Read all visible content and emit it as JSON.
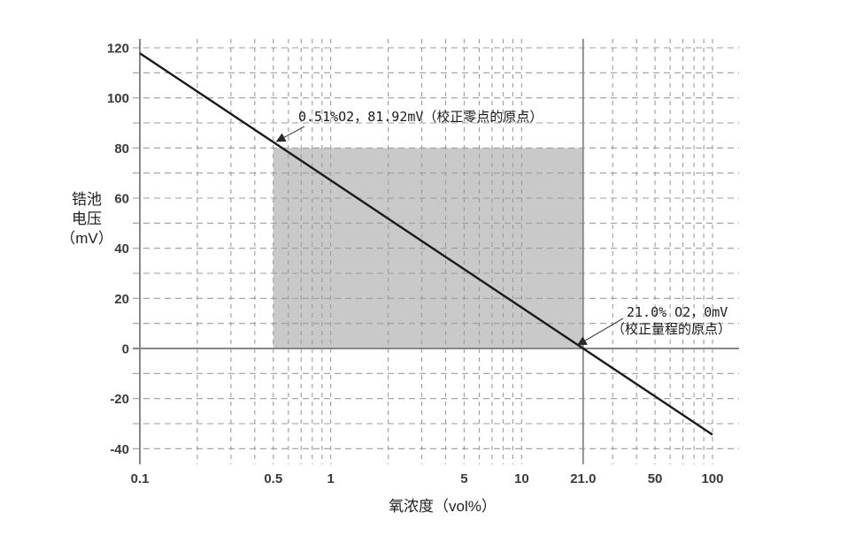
{
  "chart_data": {
    "type": "line",
    "title": "",
    "xlabel": "氧浓度（vol%）",
    "ylabel_lines": [
      "锆池",
      "电压",
      "（mV）"
    ],
    "x_scale": "log",
    "xlim": [
      0.1,
      100
    ],
    "ylim": [
      -40,
      120
    ],
    "grid": true,
    "legend_position": "none",
    "x_ticks": [
      {
        "v": 0.1,
        "label": "0.1"
      },
      {
        "v": 0.5,
        "label": "0.5"
      },
      {
        "v": 1,
        "label": "1"
      },
      {
        "v": 5,
        "label": "5"
      },
      {
        "v": 10,
        "label": "10"
      },
      {
        "v": 21,
        "label": "21.0"
      },
      {
        "v": 50,
        "label": "50"
      },
      {
        "v": 100,
        "label": "100"
      }
    ],
    "y_ticks": [
      {
        "v": 120,
        "label": "120"
      },
      {
        "v": 100,
        "label": "100"
      },
      {
        "v": 80,
        "label": "80"
      },
      {
        "v": 60,
        "label": "60"
      },
      {
        "v": 40,
        "label": "40"
      },
      {
        "v": 20,
        "label": "20"
      },
      {
        "v": 0,
        "label": "0"
      },
      {
        "v": -20,
        "label": "-20"
      },
      {
        "v": -40,
        "label": "-40"
      }
    ],
    "y_grid_step": 10,
    "v_gridlines": [
      0.2,
      0.3,
      0.4,
      0.5,
      0.6,
      0.7,
      0.8,
      0.9,
      1,
      2,
      3,
      4,
      5,
      6,
      7,
      8,
      9,
      10,
      30,
      40,
      50,
      60,
      70,
      80,
      90,
      100
    ],
    "series": [
      {
        "name": "zirconia-cell-voltage",
        "slope_mv_per_decade": -50.73,
        "points": [
          {
            "x": 0.1,
            "y": 117.8
          },
          {
            "x": 0.51,
            "y": 81.92
          },
          {
            "x": 21.0,
            "y": 0
          },
          {
            "x": 100,
            "y": -34.4
          }
        ]
      }
    ],
    "shaded_region": {
      "x_from": 0.5,
      "x_to": 21.0,
      "y_from": 0,
      "y_to": 80
    },
    "reference_lines": {
      "vertical_at_x": 21.0,
      "horizontal_at_y": 0
    },
    "annotations": [
      {
        "text": "0.51%O2，81.92mV（校正零点的原点）",
        "point_x": 0.51,
        "point_y": 81.92
      },
      {
        "text_lines": [
          "21.0% O2，0mV",
          "（校正量程的原点）"
        ],
        "point_x": 21.0,
        "point_y": 0
      }
    ],
    "colors": {
      "line": "#1a1a1a",
      "grid": "#9c9c9c",
      "axis": "#878787",
      "shade": "#c9c9c9",
      "tick_label": "#3a3a3a",
      "text": "#1a1a1a",
      "arrow": "#4a4a4a"
    }
  }
}
